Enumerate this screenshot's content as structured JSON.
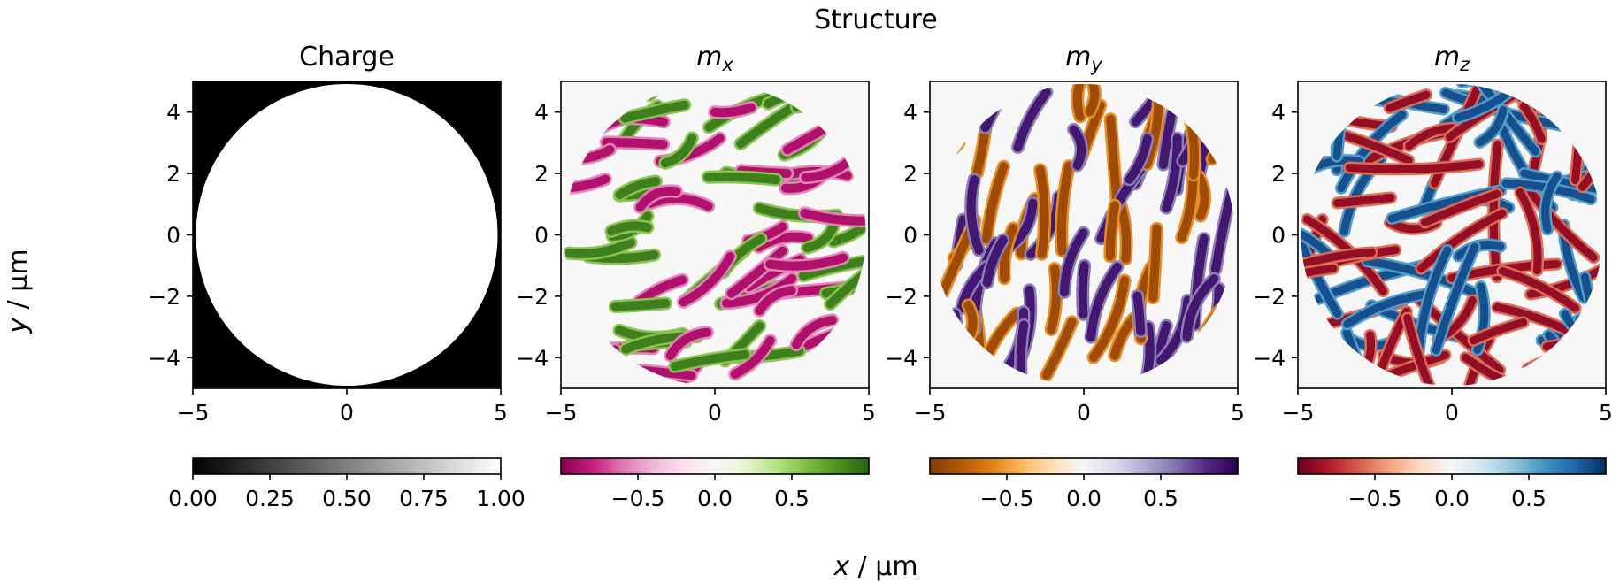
{
  "figure": {
    "suptitle": "Structure",
    "xlabel_prefix": "x",
    "xlabel_suffix": " / µm",
    "ylabel_prefix": "y",
    "ylabel_suffix": " / µm"
  },
  "chart_data": [
    {
      "type": "heatmap",
      "title": "Charge",
      "title_base": "",
      "title_sub": "",
      "colormap": "gray",
      "colors": [
        "#000000",
        "#ffffff"
      ],
      "xlim": [
        -5,
        5
      ],
      "ylim": [
        -5,
        5
      ],
      "xticks": [
        "−5",
        "0",
        "5"
      ],
      "yticks": [
        "4",
        "2",
        "0",
        "−2",
        "−4"
      ],
      "ytick_values": [
        4,
        2,
        0,
        -2,
        -4
      ],
      "xtick_values": [
        -5,
        0,
        5
      ],
      "colorbar": {
        "range": [
          0,
          1
        ],
        "ticks": [
          0,
          0.25,
          0.5,
          0.75,
          1.0
        ],
        "labels": [
          "0.00",
          "0.25",
          "0.50",
          "0.75",
          "1.00"
        ]
      },
      "disk_radius": 4.9,
      "background_value": 0
    },
    {
      "type": "heatmap",
      "title": "",
      "title_base": "m",
      "title_sub": "x",
      "colormap": "PiYG",
      "colors": [
        "#8e0152",
        "#c51b7d",
        "#de77ae",
        "#f1b6da",
        "#fde0ef",
        "#f7f7f7",
        "#e6f5d0",
        "#b8e186",
        "#7fbc41",
        "#4d9221",
        "#276419"
      ],
      "xlim": [
        -5,
        5
      ],
      "ylim": [
        -5,
        5
      ],
      "xticks": [
        "−5",
        "0",
        "5"
      ],
      "yticks": [
        "4",
        "2",
        "0",
        "−2",
        "−4"
      ],
      "ytick_values": [
        4,
        2,
        0,
        -2,
        -4
      ],
      "xtick_values": [
        -5,
        0,
        5
      ],
      "colorbar": {
        "range": [
          -1,
          1
        ],
        "ticks": [
          -0.5,
          0.0,
          0.5
        ],
        "labels": [
          "−0.5",
          "0.0",
          "0.5"
        ]
      },
      "disk_radius": 4.9,
      "background_value": 0
    },
    {
      "type": "heatmap",
      "title": "",
      "title_base": "m",
      "title_sub": "y",
      "colormap": "PuOr",
      "colors": [
        "#7f3b08",
        "#b35806",
        "#e08214",
        "#fdb863",
        "#fee0b6",
        "#f7f7f7",
        "#d8daeb",
        "#b2abd2",
        "#8073ac",
        "#542788",
        "#2d004b"
      ],
      "xlim": [
        -5,
        5
      ],
      "ylim": [
        -5,
        5
      ],
      "xticks": [
        "−5",
        "0",
        "5"
      ],
      "yticks": [
        "4",
        "2",
        "0",
        "−2",
        "−4"
      ],
      "ytick_values": [
        4,
        2,
        0,
        -2,
        -4
      ],
      "xtick_values": [
        -5,
        0,
        5
      ],
      "colorbar": {
        "range": [
          -1,
          1
        ],
        "ticks": [
          -0.5,
          0.0,
          0.5
        ],
        "labels": [
          "−0.5",
          "0.0",
          "0.5"
        ]
      },
      "disk_radius": 4.9,
      "background_value": 0
    },
    {
      "type": "heatmap",
      "title": "",
      "title_base": "m",
      "title_sub": "z",
      "colormap": "RdBu",
      "colors": [
        "#67001f",
        "#b2182b",
        "#d6604d",
        "#f4a582",
        "#fddbc7",
        "#f7f7f7",
        "#d1e5f0",
        "#92c5de",
        "#4393c3",
        "#2166ac",
        "#053061"
      ],
      "xlim": [
        -5,
        5
      ],
      "ylim": [
        -5,
        5
      ],
      "xticks": [
        "−5",
        "0",
        "5"
      ],
      "yticks": [
        "4",
        "2",
        "0",
        "−2",
        "−4"
      ],
      "ytick_values": [
        4,
        2,
        0,
        -2,
        -4
      ],
      "xtick_values": [
        -5,
        0,
        5
      ],
      "colorbar": {
        "range": [
          -1,
          1
        ],
        "ticks": [
          -0.5,
          0.0,
          0.5
        ],
        "labels": [
          "−0.5",
          "0.0",
          "0.5"
        ]
      },
      "disk_radius": 4.9,
      "background_value": 0
    }
  ]
}
